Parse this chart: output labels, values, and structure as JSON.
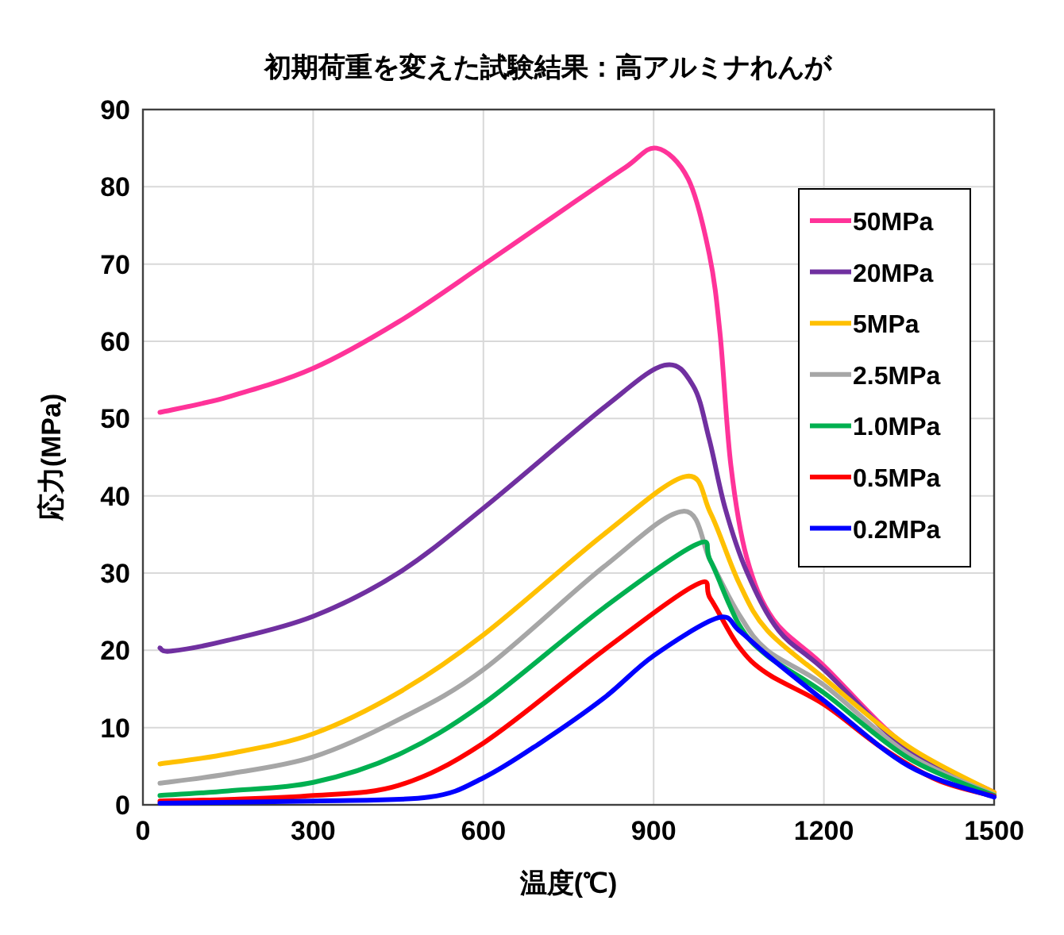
{
  "chart_data": {
    "type": "line",
    "title": "初期荷重を変えた試験結果：高アルミナれんが",
    "xlabel": "温度(℃)",
    "ylabel": "応力(MPa)",
    "xlim": [
      0,
      1500
    ],
    "ylim": [
      0,
      90
    ],
    "xticks": [
      0,
      300,
      600,
      900,
      1200,
      1500
    ],
    "yticks": [
      0,
      10,
      20,
      30,
      40,
      50,
      60,
      70,
      80,
      90
    ],
    "grid": true,
    "legend": "top right",
    "line_style": "solid",
    "marker": "none",
    "series": [
      {
        "name": "50MPa",
        "color": "#ff3399",
        "x": [
          30,
          150,
          300,
          450,
          600,
          750,
          850,
          905,
          961,
          998,
          1017,
          1036,
          1064,
          1111,
          1200,
          1345,
          1500
        ],
        "values": [
          50.8,
          52.8,
          56.5,
          62.5,
          69.9,
          77.5,
          82.5,
          85.0,
          81,
          71.3,
          61,
          44,
          32,
          24,
          18,
          7.6,
          1.6
        ]
      },
      {
        "name": "20MPa",
        "color": "#7030a0",
        "x": [
          30,
          50,
          150,
          300,
          450,
          600,
          812,
          919,
          970,
          998,
          1026,
          1064,
          1120,
          1200,
          1350,
          1500
        ],
        "values": [
          20.3,
          19.9,
          21.3,
          24.4,
          30,
          38.4,
          51.4,
          56.9,
          54.2,
          47.3,
          38.4,
          30.2,
          22.6,
          17.5,
          7,
          1.5
        ]
      },
      {
        "name": "5MPa",
        "color": "#ffc000",
        "x": [
          30,
          150,
          300,
          450,
          600,
          812,
          956,
          1000,
          1050,
          1100,
          1200,
          1350,
          1500
        ],
        "values": [
          5.3,
          6.6,
          9.2,
          14.5,
          22,
          35,
          42.5,
          37.8,
          28.8,
          22.6,
          16.4,
          7.5,
          1.6
        ]
      },
      {
        "name": "2.5MPa",
        "color": "#a6a6a6",
        "x": [
          30,
          150,
          300,
          450,
          600,
          812,
          952,
          1000,
          1050,
          1100,
          1200,
          1350,
          1500
        ],
        "values": [
          2.8,
          4,
          6.2,
          11,
          17.5,
          30.8,
          38,
          31.6,
          24.7,
          20,
          15.5,
          6.5,
          1.3
        ]
      },
      {
        "name": "1.0MPa",
        "color": "#00b050",
        "x": [
          30,
          150,
          300,
          450,
          600,
          812,
          975,
          1000,
          1050,
          1100,
          1200,
          1350,
          1500
        ],
        "values": [
          1.2,
          1.8,
          2.9,
          6.5,
          13.1,
          25.5,
          33.7,
          31.6,
          23.4,
          19.3,
          14.5,
          6,
          1.2
        ]
      },
      {
        "name": "0.5MPa",
        "color": "#ff0000",
        "x": [
          30,
          150,
          300,
          450,
          600,
          812,
          975,
          1000,
          1050,
          1100,
          1200,
          1300,
          1400,
          1500
        ],
        "values": [
          0.5,
          0.7,
          1.2,
          2.5,
          8,
          20,
          28.5,
          26.7,
          20.5,
          17,
          13,
          7.5,
          3.2,
          1.1
        ]
      },
      {
        "name": "0.2MPa",
        "color": "#0000ff",
        "x": [
          30,
          300,
          504,
          600,
          700,
          812,
          900,
          1013,
          1050,
          1100,
          1200,
          1350,
          1500
        ],
        "values": [
          0.2,
          0.5,
          1.0,
          3.5,
          8,
          13.8,
          19.3,
          24.2,
          22.6,
          19.4,
          13.5,
          5,
          1.0
        ]
      }
    ]
  }
}
